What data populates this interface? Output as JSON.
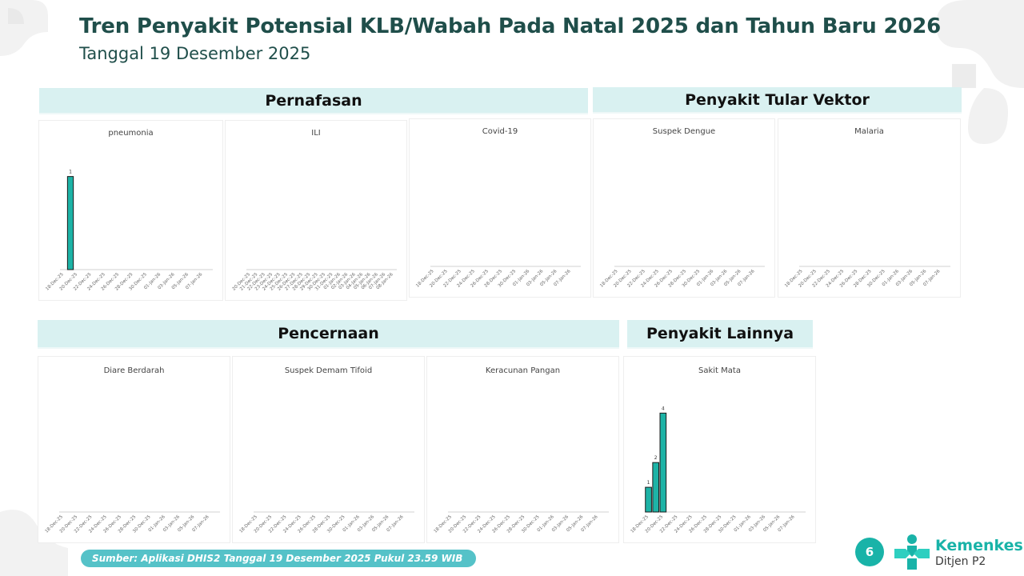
{
  "header": {
    "title": "Tren Penyakit Potensial KLB/Wabah Pada Natal 2025 dan Tahun Baru 2026",
    "subtitle": "Tanggal 19 Desember 2025"
  },
  "groups": [
    {
      "label": "Pernafasan"
    },
    {
      "label": "Penyakit Tular Vektor"
    },
    {
      "label": "Pencernaan"
    },
    {
      "label": "Penyakit Lainnya"
    }
  ],
  "footer": {
    "source": "Sumber: Aplikasi DHIS2 Tanggal 19 Desember 2025 Pukul 23.59 WIB",
    "page_number": "6",
    "logo_name": "Kemenkes",
    "logo_sub": "Ditjen P2"
  },
  "colors": {
    "bar": "#1db3a6",
    "band": "#d9f1f1",
    "brand": "#19b3a8"
  },
  "chart_data": [
    {
      "type": "bar",
      "title": "pneumonia",
      "categories": [
        "18-Dec-25",
        "19-Dec-25",
        "20-Dec-25",
        "21-Dec-25",
        "22-Dec-25",
        "23-Dec-25",
        "24-Dec-25",
        "25-Dec-25",
        "26-Dec-25",
        "27-Dec-25",
        "28-Dec-25",
        "29-Dec-25",
        "30-Dec-25",
        "31-Dec-25",
        "01-Jan-26",
        "02-Jan-26",
        "03-Jan-26",
        "04-Jan-26",
        "05-Jan-26",
        "06-Jan-26",
        "07-Jan-26",
        "08-Jan-26"
      ],
      "tick_labels": [
        "18-Dec-25",
        "20-Dec-25",
        "22-Dec-25",
        "24-Dec-25",
        "26-Dec-25",
        "28-Dec-25",
        "30-Dec-25",
        "01-Jan-26",
        "03-Jan-26",
        "05-Jan-26",
        "07-Jan-26"
      ],
      "values": [
        0,
        1,
        0,
        0,
        0,
        0,
        0,
        0,
        0,
        0,
        0,
        0,
        0,
        0,
        0,
        0,
        0,
        0,
        0,
        0,
        0,
        0
      ],
      "data_labels": [
        "",
        "1",
        "",
        "",
        "",
        "",
        "",
        "",
        "",
        "",
        "",
        "",
        "",
        "",
        "",
        "",
        "",
        "",
        "",
        "",
        "",
        ""
      ],
      "ylim": [
        0,
        1.1
      ]
    },
    {
      "type": "bar",
      "title": "ILI",
      "categories": [
        "20-Dec-25",
        "21-Dec-25",
        "22-Dec-25",
        "23-Dec-25",
        "24-Dec-25",
        "25-Dec-25",
        "26-Dec-25",
        "27-Dec-25",
        "28-Dec-25",
        "29-Dec-25",
        "30-Dec-25",
        "31-Dec-25",
        "01-Jan-26",
        "02-Jan-26",
        "03-Jan-26",
        "04-Jan-26",
        "05-Jan-26",
        "06-Jan-26",
        "07-Jan-26",
        "08-Jan-26"
      ],
      "tick_labels": [
        "20-Dec-25",
        "21-Dec-25",
        "22-Dec-25",
        "23-Dec-25",
        "24-Dec-25",
        "25-Dec-25",
        "26-Dec-25",
        "27-Dec-25",
        "28-Dec-25",
        "29-Dec-25",
        "30-Dec-25",
        "31-Dec-25",
        "01-Jan-26",
        "02-Jan-26",
        "03-Jan-26",
        "04-Jan-26",
        "05-Jan-26",
        "06-Jan-26",
        "07-Jan-26",
        "08-Jan-26"
      ],
      "values": [
        0,
        0,
        0,
        0,
        0,
        0,
        0,
        0,
        0,
        0,
        0,
        0,
        0,
        0,
        0,
        0,
        0,
        0,
        0,
        0
      ],
      "data_labels": [],
      "ylim": [
        0,
        1
      ]
    },
    {
      "type": "bar",
      "title": "Covid-19",
      "categories": [
        "18-Dec-25",
        "19-Dec-25",
        "20-Dec-25",
        "21-Dec-25",
        "22-Dec-25",
        "23-Dec-25",
        "24-Dec-25",
        "25-Dec-25",
        "26-Dec-25",
        "27-Dec-25",
        "28-Dec-25",
        "29-Dec-25",
        "30-Dec-25",
        "31-Dec-25",
        "01-Jan-26",
        "02-Jan-26",
        "03-Jan-26",
        "04-Jan-26",
        "05-Jan-26",
        "06-Jan-26",
        "07-Jan-26",
        "08-Jan-26"
      ],
      "tick_labels": [
        "18-Dec-25",
        "20-Dec-25",
        "22-Dec-25",
        "24-Dec-25",
        "26-Dec-25",
        "28-Dec-25",
        "30-Dec-25",
        "01-Jan-26",
        "03-Jan-26",
        "05-Jan-26",
        "07-Jan-26"
      ],
      "values": [
        0,
        0,
        0,
        0,
        0,
        0,
        0,
        0,
        0,
        0,
        0,
        0,
        0,
        0,
        0,
        0,
        0,
        0,
        0,
        0,
        0,
        0
      ],
      "data_labels": [],
      "ylim": [
        0,
        1
      ]
    },
    {
      "type": "bar",
      "title": "Suspek Dengue",
      "categories": [
        "18-Dec-25",
        "19-Dec-25",
        "20-Dec-25",
        "21-Dec-25",
        "22-Dec-25",
        "23-Dec-25",
        "24-Dec-25",
        "25-Dec-25",
        "26-Dec-25",
        "27-Dec-25",
        "28-Dec-25",
        "29-Dec-25",
        "30-Dec-25",
        "31-Dec-25",
        "01-Jan-26",
        "02-Jan-26",
        "03-Jan-26",
        "04-Jan-26",
        "05-Jan-26",
        "06-Jan-26",
        "07-Jan-26",
        "08-Jan-26"
      ],
      "tick_labels": [
        "18-Dec-25",
        "20-Dec-25",
        "22-Dec-25",
        "24-Dec-25",
        "26-Dec-25",
        "28-Dec-25",
        "30-Dec-25",
        "01-Jan-26",
        "03-Jan-26",
        "05-Jan-26",
        "07-Jan-26"
      ],
      "values": [
        0,
        0,
        0,
        0,
        0,
        0,
        0,
        0,
        0,
        0,
        0,
        0,
        0,
        0,
        0,
        0,
        0,
        0,
        0,
        0,
        0,
        0
      ],
      "data_labels": [],
      "ylim": [
        0,
        1
      ]
    },
    {
      "type": "bar",
      "title": "Malaria",
      "categories": [
        "18-Dec-25",
        "19-Dec-25",
        "20-Dec-25",
        "21-Dec-25",
        "22-Dec-25",
        "23-Dec-25",
        "24-Dec-25",
        "25-Dec-25",
        "26-Dec-25",
        "27-Dec-25",
        "28-Dec-25",
        "29-Dec-25",
        "30-Dec-25",
        "31-Dec-25",
        "01-Jan-26",
        "02-Jan-26",
        "03-Jan-26",
        "04-Jan-26",
        "05-Jan-26",
        "06-Jan-26",
        "07-Jan-26",
        "08-Jan-26"
      ],
      "tick_labels": [
        "18-Dec-25",
        "20-Dec-25",
        "22-Dec-25",
        "24-Dec-25",
        "26-Dec-25",
        "28-Dec-25",
        "30-Dec-25",
        "01-Jan-26",
        "03-Jan-26",
        "05-Jan-26",
        "07-Jan-26"
      ],
      "values": [
        0,
        0,
        0,
        0,
        0,
        0,
        0,
        0,
        0,
        0,
        0,
        0,
        0,
        0,
        0,
        0,
        0,
        0,
        0,
        0,
        0,
        0
      ],
      "data_labels": [],
      "ylim": [
        0,
        1
      ]
    },
    {
      "type": "bar",
      "title": "Diare Berdarah",
      "categories": [
        "18-Dec-25",
        "19-Dec-25",
        "20-Dec-25",
        "21-Dec-25",
        "22-Dec-25",
        "23-Dec-25",
        "24-Dec-25",
        "25-Dec-25",
        "26-Dec-25",
        "27-Dec-25",
        "28-Dec-25",
        "29-Dec-25",
        "30-Dec-25",
        "31-Dec-25",
        "01-Jan-26",
        "02-Jan-26",
        "03-Jan-26",
        "04-Jan-26",
        "05-Jan-26",
        "06-Jan-26",
        "07-Jan-26",
        "08-Jan-26"
      ],
      "tick_labels": [
        "18-Dec-25",
        "20-Dec-25",
        "22-Dec-25",
        "24-Dec-25",
        "26-Dec-25",
        "28-Dec-25",
        "30-Dec-25",
        "01-Jan-26",
        "03-Jan-26",
        "05-Jan-26",
        "07-Jan-26"
      ],
      "values": [
        0,
        0,
        0,
        0,
        0,
        0,
        0,
        0,
        0,
        0,
        0,
        0,
        0,
        0,
        0,
        0,
        0,
        0,
        0,
        0,
        0,
        0
      ],
      "data_labels": [],
      "ylim": [
        0,
        1
      ]
    },
    {
      "type": "bar",
      "title": "Suspek Demam Tifoid",
      "categories": [
        "18-Dec-25",
        "19-Dec-25",
        "20-Dec-25",
        "21-Dec-25",
        "22-Dec-25",
        "23-Dec-25",
        "24-Dec-25",
        "25-Dec-25",
        "26-Dec-25",
        "27-Dec-25",
        "28-Dec-25",
        "29-Dec-25",
        "30-Dec-25",
        "31-Dec-25",
        "01-Jan-26",
        "02-Jan-26",
        "03-Jan-26",
        "04-Jan-26",
        "05-Jan-26",
        "06-Jan-26",
        "07-Jan-26",
        "08-Jan-26"
      ],
      "tick_labels": [
        "18-Dec-25",
        "20-Dec-25",
        "22-Dec-25",
        "24-Dec-25",
        "26-Dec-25",
        "28-Dec-25",
        "30-Dec-25",
        "01-Jan-26",
        "03-Jan-26",
        "05-Jan-26",
        "07-Jan-26"
      ],
      "values": [
        0,
        0,
        0,
        0,
        0,
        0,
        0,
        0,
        0,
        0,
        0,
        0,
        0,
        0,
        0,
        0,
        0,
        0,
        0,
        0,
        0,
        0
      ],
      "data_labels": [],
      "ylim": [
        0,
        1
      ]
    },
    {
      "type": "bar",
      "title": "Keracunan Pangan",
      "categories": [
        "18-Dec-25",
        "19-Dec-25",
        "20-Dec-25",
        "21-Dec-25",
        "22-Dec-25",
        "23-Dec-25",
        "24-Dec-25",
        "25-Dec-25",
        "26-Dec-25",
        "27-Dec-25",
        "28-Dec-25",
        "29-Dec-25",
        "30-Dec-25",
        "31-Dec-25",
        "01-Jan-26",
        "02-Jan-26",
        "03-Jan-26",
        "04-Jan-26",
        "05-Jan-26",
        "06-Jan-26",
        "07-Jan-26",
        "08-Jan-26"
      ],
      "tick_labels": [
        "18-Dec-25",
        "20-Dec-25",
        "22-Dec-25",
        "24-Dec-25",
        "26-Dec-25",
        "28-Dec-25",
        "30-Dec-25",
        "01-Jan-26",
        "03-Jan-26",
        "05-Jan-26",
        "07-Jan-26"
      ],
      "values": [
        0,
        0,
        0,
        0,
        0,
        0,
        0,
        0,
        0,
        0,
        0,
        0,
        0,
        0,
        0,
        0,
        0,
        0,
        0,
        0,
        0,
        0
      ],
      "data_labels": [],
      "ylim": [
        0,
        1
      ]
    },
    {
      "type": "bar",
      "title": "Sakit Mata",
      "categories": [
        "18-Dec-25",
        "19-Dec-25",
        "20-Dec-25",
        "21-Dec-25",
        "22-Dec-25",
        "23-Dec-25",
        "24-Dec-25",
        "25-Dec-25",
        "26-Dec-25",
        "27-Dec-25",
        "28-Dec-25",
        "29-Dec-25",
        "30-Dec-25",
        "31-Dec-25",
        "01-Jan-26",
        "02-Jan-26",
        "03-Jan-26",
        "04-Jan-26",
        "05-Jan-26",
        "06-Jan-26",
        "07-Jan-26",
        "08-Jan-26"
      ],
      "tick_labels": [
        "18-Dec-25",
        "20-Dec-25",
        "22-Dec-25",
        "24-Dec-25",
        "26-Dec-25",
        "28-Dec-25",
        "30-Dec-25",
        "01-Jan-26",
        "03-Jan-26",
        "05-Jan-26",
        "07-Jan-26"
      ],
      "values": [
        1,
        2,
        4,
        0,
        0,
        0,
        0,
        0,
        0,
        0,
        0,
        0,
        0,
        0,
        0,
        0,
        0,
        0,
        0,
        0,
        0,
        0
      ],
      "data_labels": [
        "1",
        "2",
        "4",
        "",
        "",
        "",
        "",
        "",
        "",
        "",
        "",
        "",
        "",
        "",
        "",
        "",
        "",
        "",
        "",
        "",
        "",
        ""
      ],
      "ylim": [
        0,
        4.4
      ]
    }
  ]
}
